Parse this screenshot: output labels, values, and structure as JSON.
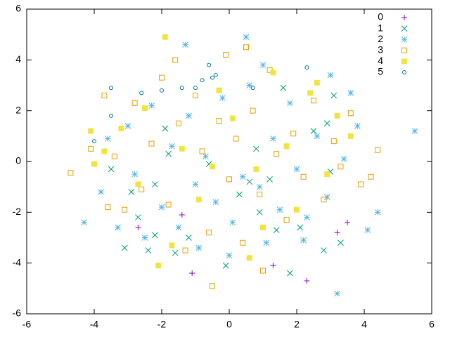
{
  "chart_data": {
    "type": "scatter",
    "xlim": [
      -6,
      6
    ],
    "ylim": [
      -6,
      6
    ],
    "xticks": [
      -6,
      -4,
      -2,
      0,
      2,
      4,
      6
    ],
    "yticks": [
      -6,
      -4,
      -2,
      0,
      2,
      4,
      6
    ],
    "legend": "top-right",
    "series": [
      {
        "name": "0",
        "color": "#9400d3",
        "marker": "plus",
        "x": [
          -2.7,
          -1.4,
          -1.1,
          1.3,
          2.3,
          3.5,
          3.2
        ],
        "y": [
          -2.6,
          -2.1,
          -4.4,
          -4.1,
          -4.7,
          -2.4,
          -2.8
        ]
      },
      {
        "name": "1",
        "color": "#009e73",
        "marker": "cross",
        "x": [
          -3.5,
          -3.1,
          -2.9,
          -2.7,
          -2.4,
          -2.2,
          -1.9,
          -1.6,
          -1.2,
          -0.6,
          -0.1,
          0.6,
          0.9,
          1.2,
          1.6,
          1.8,
          2.1,
          2.5,
          2.8,
          3.0,
          3.1,
          3.3,
          -1.8,
          0.3,
          1.4,
          2.9,
          -2.2,
          0.8
        ],
        "y": [
          -0.3,
          -3.4,
          -1.2,
          -2.2,
          -3.5,
          -2.9,
          1.3,
          -3.6,
          -3.0,
          -0.1,
          -4.1,
          -0.8,
          -2.0,
          -0.7,
          2.9,
          -4.4,
          -2.6,
          1.2,
          -3.5,
          -0.4,
          2.6,
          -3.2,
          0.3,
          -1.3,
          -2.7,
          1.5,
          -0.9,
          0.5
        ]
      },
      {
        "name": "2",
        "color": "#56b4e9",
        "marker": "star",
        "x": [
          5.5,
          -4.3,
          3.2,
          0.5,
          -1.3,
          4.4,
          4.1,
          3.6,
          3.0,
          -3.3,
          -3.0,
          -2.8,
          -2.5,
          -2.3,
          -2.0,
          -1.7,
          -1.5,
          -1.2,
          -0.9,
          -0.7,
          -0.4,
          -0.2,
          0.1,
          0.4,
          0.6,
          0.9,
          1.1,
          1.3,
          1.5,
          1.8,
          2.0,
          2.3,
          2.6,
          2.9,
          3.4,
          3.8,
          -3.8,
          -3.6,
          0.0,
          1.0,
          -1.0,
          2.2
        ],
        "y": [
          1.2,
          -2.4,
          -5.2,
          4.9,
          4.6,
          -2.0,
          -2.7,
          2.7,
          3.4,
          -2.6,
          1.4,
          -0.5,
          -3.0,
          2.2,
          -1.8,
          0.6,
          -2.6,
          1.8,
          -3.4,
          0.2,
          -1.6,
          2.5,
          -2.4,
          -0.6,
          3.0,
          -1.0,
          -3.2,
          0.9,
          -1.9,
          2.3,
          -0.3,
          -2.2,
          1.0,
          -1.4,
          0.1,
          1.4,
          -1.2,
          0.9,
          -3.7,
          3.8,
          -0.9,
          -3.1
        ]
      },
      {
        "name": "3",
        "color": "#e69f00",
        "marker": "open-square",
        "x": [
          -4.7,
          -0.5,
          0.5,
          4.4,
          4.2,
          -3.7,
          -0.1,
          -4.1,
          -3.6,
          -3.4,
          -3.1,
          -2.8,
          -2.6,
          -2.3,
          -2.0,
          -1.8,
          -1.5,
          -1.3,
          -1.0,
          -0.8,
          -0.6,
          -0.3,
          0.0,
          0.2,
          0.4,
          0.7,
          0.9,
          1.2,
          1.4,
          1.7,
          1.9,
          2.2,
          2.5,
          2.8,
          3.1,
          3.3,
          3.6,
          3.9,
          -1.6,
          1.0
        ],
        "y": [
          -0.45,
          -4.9,
          4.5,
          0.45,
          -0.6,
          2.6,
          4.2,
          0.5,
          -1.8,
          0.2,
          -1.9,
          2.3,
          -1.1,
          0.7,
          3.3,
          -1.7,
          1.5,
          -3.5,
          2.6,
          0.4,
          -2.8,
          1.6,
          -0.7,
          0.9,
          -3.2,
          2.0,
          -1.3,
          3.6,
          0.3,
          -2.3,
          1.1,
          -0.6,
          2.4,
          -1.5,
          0.8,
          -0.2,
          1.9,
          -0.9,
          4.0,
          -4.3
        ]
      },
      {
        "name": "4",
        "color": "#f0e442",
        "marker": "filled-square",
        "x": [
          -1.9,
          -2.1,
          -4.1,
          -4.0,
          -1.7,
          0.6,
          3.6,
          -3.2,
          -2.7,
          -2.5,
          -1.4,
          -0.9,
          -0.3,
          0.1,
          0.8,
          1.3,
          1.7,
          2.0,
          2.4,
          2.9,
          3.2,
          -3.7,
          1.0,
          -0.5,
          2.6
        ],
        "y": [
          4.9,
          -4.1,
          1.2,
          -0.1,
          -3.3,
          -3.8,
          1.0,
          1.3,
          -0.9,
          2.1,
          0.5,
          -1.5,
          2.8,
          1.7,
          -0.3,
          3.5,
          0.6,
          -1.9,
          2.7,
          -0.5,
          1.8,
          0.4,
          -2.6,
          -0.2,
          3.1
        ]
      },
      {
        "name": "5",
        "color": "#0072b2",
        "marker": "open-circle",
        "x": [
          -3.5,
          -4.0,
          -3.5,
          -2.6,
          -2.0,
          -1.4,
          -1.0,
          -0.8,
          -0.5,
          -0.6,
          -0.4,
          0.7,
          2.3
        ],
        "y": [
          2.9,
          0.8,
          1.8,
          2.7,
          2.8,
          2.9,
          2.9,
          3.2,
          3.3,
          3.8,
          3.4,
          2.9,
          3.7
        ]
      }
    ]
  }
}
